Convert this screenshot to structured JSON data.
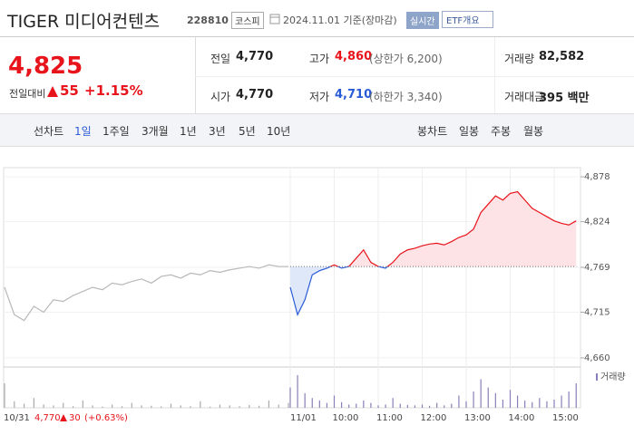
{
  "header": {
    "title": "TIGER 미디어컨텐츠",
    "code": "228810",
    "market": "코스피",
    "date": "2024.11.01 기준(장마감)",
    "realtime": "실시간",
    "etf_overview": "ETF개요"
  },
  "price": {
    "current": "4,825",
    "change_label": "전일대비",
    "change": "55",
    "change_rate": "+1.15%"
  },
  "stats": [
    {
      "label": "전일",
      "value": "4,770"
    },
    {
      "label": "고가",
      "value": "4,860",
      "note": "(상한가 6,200)"
    },
    {
      "label": "거래량",
      "value": "82,582"
    },
    {
      "label": "시가",
      "value": "4,770"
    },
    {
      "label": "저가",
      "value": "4,710",
      "note": "(하한가 3,340)"
    },
    {
      "label": "거래대금",
      "value": "395 백만"
    }
  ],
  "tabs": {
    "line_label": "선차트",
    "line_periods": [
      "1일",
      "1주일",
      "3개월",
      "1년",
      "3년",
      "5년",
      "10년"
    ],
    "candle_label": "봉차트",
    "candle_periods": [
      "일봉",
      "주봉",
      "월봉"
    ]
  },
  "chart_data": {
    "type": "line",
    "ylim": [
      4649,
      4889
    ],
    "yticks": [
      {
        "value": 4878,
        "label": "4,878"
      },
      {
        "value": 4824,
        "label": "4,824"
      },
      {
        "value": 4769,
        "label": "4,769"
      },
      {
        "value": 4715,
        "label": "4,715"
      },
      {
        "value": 4660,
        "label": "4,660"
      }
    ],
    "reference_value": 4770,
    "up_color": "#e8141b",
    "down_color": "#2a5bd7",
    "previous_color": "#b8b8b8",
    "previous_day": {
      "date_label": "10/31",
      "values": [
        4745,
        4712,
        4705,
        4722,
        4715,
        4730,
        4728,
        4735,
        4740,
        4745,
        4742,
        4750,
        4748,
        4752,
        4755,
        4750,
        4758,
        4760,
        4756,
        4762,
        4760,
        4765,
        4763,
        4766,
        4768,
        4770,
        4768,
        4772,
        4770,
        4770
      ],
      "volume": [
        3000,
        800,
        500,
        1200,
        400,
        300,
        600,
        200,
        900,
        300,
        150,
        400,
        200,
        600,
        300,
        250,
        180,
        500,
        300,
        200,
        800,
        150,
        400,
        300,
        200,
        350,
        250,
        900,
        400,
        600
      ]
    },
    "today": {
      "date_label": "11/01",
      "values": [
        4745,
        4712,
        4730,
        4760,
        4765,
        4768,
        4772,
        4768,
        4770,
        4780,
        4790,
        4775,
        4770,
        4768,
        4775,
        4785,
        4790,
        4792,
        4795,
        4797,
        4798,
        4796,
        4800,
        4805,
        4808,
        4815,
        4835,
        4845,
        4855,
        4850,
        4858,
        4860,
        4850,
        4840,
        4835,
        4830,
        4825,
        4822,
        4820,
        4825
      ],
      "volume": [
        2500,
        4000,
        1800,
        1200,
        900,
        600,
        1500,
        700,
        400,
        500,
        900,
        600,
        300,
        400,
        1200,
        500,
        350,
        300,
        400,
        250,
        600,
        300,
        500,
        1500,
        800,
        2000,
        3500,
        2500,
        1800,
        1000,
        2200,
        1500,
        900,
        700,
        1200,
        800,
        1000,
        1500,
        2000,
        3000
      ]
    },
    "time_labels": [
      "10:00",
      "11:00",
      "12:00",
      "13:00",
      "14:00",
      "15:00"
    ],
    "volume_label": "거래량"
  },
  "summary": {
    "date": "10/31",
    "price": "4,770",
    "change": "30",
    "change_rate": "(+0.63%)"
  }
}
